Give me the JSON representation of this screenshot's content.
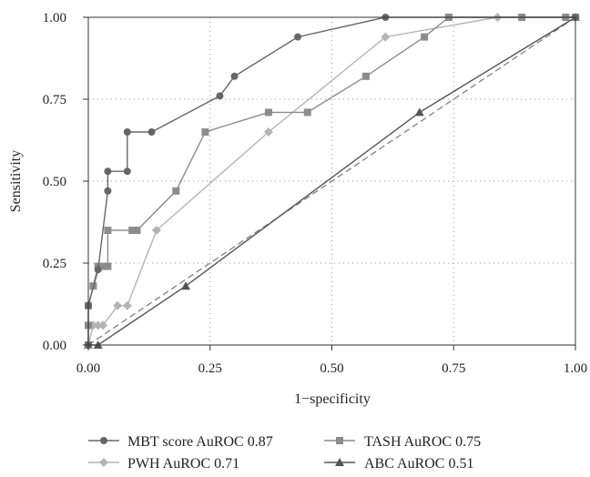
{
  "chart_data": {
    "type": "line",
    "xlabel": "1−specificity",
    "ylabel": "Sensitivity",
    "xlim": [
      0,
      1
    ],
    "ylim": [
      0,
      1
    ],
    "x_ticks": [
      "0.00",
      "0.25",
      "0.50",
      "0.75",
      "1.00"
    ],
    "y_ticks": [
      "0.00",
      "0.25",
      "0.50",
      "0.75",
      "1.00"
    ],
    "grid": "dotted",
    "reference_line": "diagonal, dashed",
    "legend_position": "bottom",
    "series": [
      {
        "name": "MBT score AuROC 0.87",
        "marker": "circle",
        "color": "#666666",
        "x": [
          0,
          0,
          0.02,
          0.04,
          0.04,
          0.08,
          0.08,
          0.13,
          0.27,
          0.3,
          0.43,
          0.61,
          1.0
        ],
        "y": [
          0,
          0.12,
          0.23,
          0.47,
          0.53,
          0.53,
          0.65,
          0.65,
          0.76,
          0.82,
          0.94,
          1.0,
          1.0
        ]
      },
      {
        "name": "TASH AuROC 0.75",
        "marker": "square",
        "color": "#8c8c8c",
        "x": [
          0,
          0,
          0,
          0.01,
          0.02,
          0.03,
          0.04,
          0.04,
          0.09,
          0.1,
          0.18,
          0.24,
          0.37,
          0.45,
          0.57,
          0.69,
          0.74,
          0.89,
          0.98,
          1.0
        ],
        "y": [
          0,
          0.06,
          0.12,
          0.18,
          0.24,
          0.24,
          0.24,
          0.35,
          0.35,
          0.35,
          0.47,
          0.65,
          0.71,
          0.71,
          0.82,
          0.94,
          1.0,
          1.0,
          1.0,
          1.0
        ]
      },
      {
        "name": "PWH AuROC 0.71",
        "marker": "diamond",
        "color": "#b4b4b4",
        "x": [
          0,
          0.01,
          0.02,
          0.03,
          0.06,
          0.08,
          0.14,
          0.37,
          0.61,
          0.84,
          1.0
        ],
        "y": [
          0,
          0.06,
          0.06,
          0.06,
          0.12,
          0.12,
          0.35,
          0.65,
          0.94,
          1.0,
          1.0
        ]
      },
      {
        "name": "ABC AuROC 0.51",
        "marker": "triangle",
        "color": "#555555",
        "x": [
          0,
          0.02,
          0.2,
          0.68,
          1.0
        ],
        "y": [
          0,
          0,
          0.18,
          0.71,
          1.0
        ]
      }
    ]
  }
}
